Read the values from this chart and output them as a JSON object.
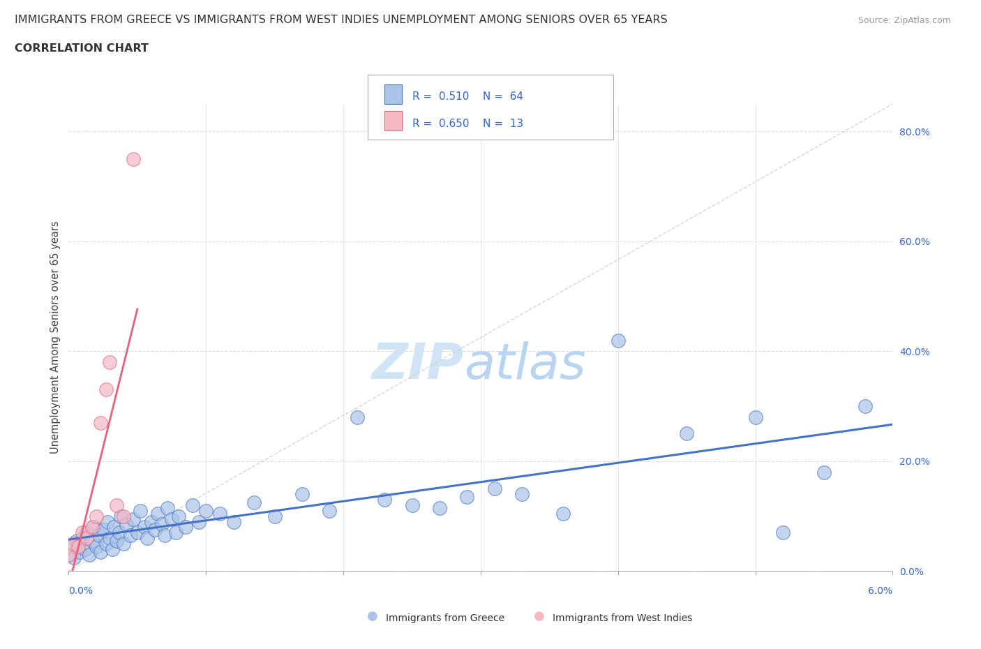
{
  "title_line1": "IMMIGRANTS FROM GREECE VS IMMIGRANTS FROM WEST INDIES UNEMPLOYMENT AMONG SENIORS OVER 65 YEARS",
  "title_line2": "CORRELATION CHART",
  "source": "Source: ZipAtlas.com",
  "ylabel": "Unemployment Among Seniors over 65 years",
  "xlim": [
    0.0,
    6.0
  ],
  "ylim": [
    0.0,
    85.0
  ],
  "R_greece": 0.51,
  "N_greece": 64,
  "R_west_indies": 0.65,
  "N_west_indies": 13,
  "color_greece": "#aac4e8",
  "color_west_indies": "#f5b8c4",
  "color_trend_greece": "#4472c4",
  "color_trend_west_indies": "#e8607a",
  "color_diagonal": "#cccccc",
  "legend_color": "#3366cc",
  "watermark_color": "#d0e4f5",
  "background_color": "#ffffff",
  "grid_color": "#dddddd",
  "title_color": "#333333",
  "source_color": "#999999",
  "greece_x": [
    0.0,
    0.02,
    0.04,
    0.06,
    0.08,
    0.1,
    0.12,
    0.13,
    0.15,
    0.17,
    0.18,
    0.2,
    0.22,
    0.23,
    0.25,
    0.27,
    0.28,
    0.3,
    0.32,
    0.33,
    0.35,
    0.37,
    0.38,
    0.4,
    0.42,
    0.45,
    0.47,
    0.5,
    0.52,
    0.55,
    0.57,
    0.6,
    0.63,
    0.65,
    0.68,
    0.7,
    0.72,
    0.75,
    0.78,
    0.8,
    0.85,
    0.9,
    0.95,
    1.0,
    1.1,
    1.2,
    1.35,
    1.5,
    1.7,
    1.9,
    2.1,
    2.3,
    2.5,
    2.7,
    2.9,
    3.1,
    3.3,
    3.6,
    4.0,
    4.5,
    5.0,
    5.2,
    5.5,
    5.8
  ],
  "greece_y": [
    3.0,
    4.5,
    2.5,
    5.5,
    3.5,
    6.0,
    4.0,
    7.0,
    3.0,
    5.5,
    8.0,
    4.5,
    6.5,
    3.5,
    7.5,
    5.0,
    9.0,
    6.0,
    4.0,
    8.0,
    5.5,
    7.0,
    10.0,
    5.0,
    8.5,
    6.5,
    9.5,
    7.0,
    11.0,
    8.0,
    6.0,
    9.0,
    7.5,
    10.5,
    8.5,
    6.5,
    11.5,
    9.5,
    7.0,
    10.0,
    8.0,
    12.0,
    9.0,
    11.0,
    10.5,
    9.0,
    12.5,
    10.0,
    14.0,
    11.0,
    28.0,
    13.0,
    12.0,
    11.5,
    13.5,
    15.0,
    14.0,
    10.5,
    42.0,
    25.0,
    28.0,
    7.0,
    18.0,
    30.0
  ],
  "west_x": [
    0.0,
    0.03,
    0.07,
    0.1,
    0.13,
    0.17,
    0.2,
    0.23,
    0.27,
    0.3,
    0.35,
    0.4,
    0.47
  ],
  "west_y": [
    3.0,
    5.0,
    4.5,
    7.0,
    6.0,
    8.0,
    10.0,
    27.0,
    33.0,
    38.0,
    12.0,
    10.0,
    75.0
  ],
  "greece_trend_x": [
    0.0,
    6.0
  ],
  "greece_trend_y_intercept": 5.5,
  "greece_trend_slope": 4.0,
  "west_trend_x_start": 0.0,
  "west_trend_x_end": 0.5,
  "west_trend_y_intercept": 0.0,
  "west_trend_slope": 90.0
}
